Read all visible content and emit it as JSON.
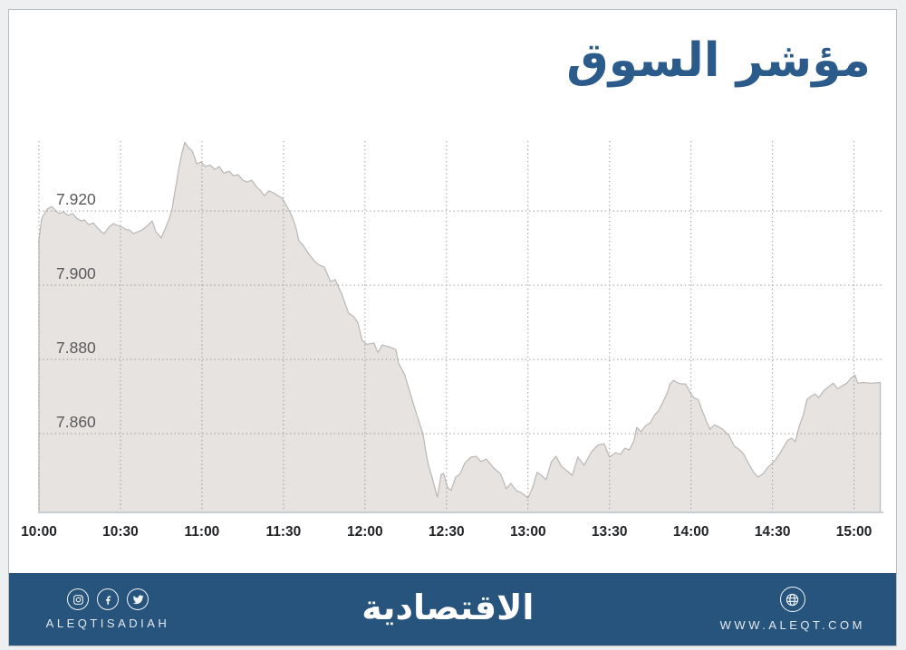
{
  "title": "مؤشر السوق",
  "chart_data": {
    "type": "area",
    "title": "مؤشر السوق",
    "x_axis": {
      "ticks": [
        "10:00",
        "10:30",
        "11:00",
        "11:30",
        "12:00",
        "12:30",
        "13:00",
        "13:30",
        "14:00",
        "14:30",
        "15:00"
      ],
      "tick_values": [
        10,
        10.5,
        11,
        11.5,
        12,
        12.5,
        13,
        13.5,
        14,
        14.5,
        15
      ],
      "range": [
        10,
        15.18
      ]
    },
    "y_axis": {
      "ticks": [
        "7.920",
        "7.900",
        "7.880",
        "7.860"
      ],
      "tick_values": [
        7920,
        7900,
        7880,
        7860
      ],
      "range": [
        7838.8,
        7938.8
      ]
    },
    "grid": "dotted",
    "legend": "none",
    "points": [
      [
        10.0,
        7912.4
      ],
      [
        10.017,
        7918.0
      ],
      [
        10.05,
        7920.5
      ],
      [
        10.078,
        7921.2
      ],
      [
        10.094,
        7920.5
      ],
      [
        10.122,
        7919.3
      ],
      [
        10.15,
        7919.8
      ],
      [
        10.178,
        7918.8
      ],
      [
        10.206,
        7919.3
      ],
      [
        10.233,
        7918.0
      ],
      [
        10.261,
        7917.3
      ],
      [
        10.278,
        7917.6
      ],
      [
        10.306,
        7916.3
      ],
      [
        10.333,
        7916.8
      ],
      [
        10.356,
        7915.6
      ],
      [
        10.383,
        7914.4
      ],
      [
        10.4,
        7913.9
      ],
      [
        10.428,
        7915.6
      ],
      [
        10.456,
        7916.6
      ],
      [
        10.483,
        7916.1
      ],
      [
        10.511,
        7915.6
      ],
      [
        10.539,
        7914.9
      ],
      [
        10.556,
        7914.9
      ],
      [
        10.578,
        7913.9
      ],
      [
        10.606,
        7914.4
      ],
      [
        10.633,
        7914.9
      ],
      [
        10.667,
        7916.1
      ],
      [
        10.694,
        7917.3
      ],
      [
        10.717,
        7914.4
      ],
      [
        10.733,
        7913.7
      ],
      [
        10.75,
        7912.7
      ],
      [
        10.778,
        7915.6
      ],
      [
        10.8,
        7918.0
      ],
      [
        10.817,
        7920.5
      ],
      [
        10.828,
        7923.7
      ],
      [
        10.844,
        7927.8
      ],
      [
        10.856,
        7931.0
      ],
      [
        10.872,
        7934.6
      ],
      [
        10.894,
        7938.5
      ],
      [
        10.917,
        7937.1
      ],
      [
        10.939,
        7936.3
      ],
      [
        10.956,
        7934.4
      ],
      [
        10.967,
        7932.7
      ],
      [
        10.994,
        7933.2
      ],
      [
        11.022,
        7932.0
      ],
      [
        11.05,
        7932.4
      ],
      [
        11.078,
        7931.2
      ],
      [
        11.106,
        7932.0
      ],
      [
        11.133,
        7930.2
      ],
      [
        11.167,
        7930.7
      ],
      [
        11.194,
        7929.5
      ],
      [
        11.222,
        7929.8
      ],
      [
        11.25,
        7928.3
      ],
      [
        11.278,
        7927.8
      ],
      [
        11.306,
        7928.3
      ],
      [
        11.333,
        7926.6
      ],
      [
        11.361,
        7925.4
      ],
      [
        11.383,
        7924.1
      ],
      [
        11.411,
        7925.4
      ],
      [
        11.439,
        7924.9
      ],
      [
        11.467,
        7924.1
      ],
      [
        11.494,
        7923.4
      ],
      [
        11.522,
        7921.2
      ],
      [
        11.55,
        7918.8
      ],
      [
        11.567,
        7916.8
      ],
      [
        11.583,
        7914.4
      ],
      [
        11.594,
        7912.0
      ],
      [
        11.622,
        7910.7
      ],
      [
        11.639,
        7909.5
      ],
      [
        11.667,
        7907.8
      ],
      [
        11.694,
        7906.3
      ],
      [
        11.722,
        7905.4
      ],
      [
        11.75,
        7904.9
      ],
      [
        11.789,
        7901.0
      ],
      [
        11.817,
        7901.5
      ],
      [
        11.856,
        7897.8
      ],
      [
        11.9,
        7892.4
      ],
      [
        11.928,
        7891.7
      ],
      [
        11.956,
        7890.0
      ],
      [
        11.983,
        7885.1
      ],
      [
        12.011,
        7884.1
      ],
      [
        12.056,
        7884.4
      ],
      [
        12.078,
        7881.9
      ],
      [
        12.106,
        7883.9
      ],
      [
        12.15,
        7883.4
      ],
      [
        12.189,
        7882.7
      ],
      [
        12.206,
        7879.0
      ],
      [
        12.244,
        7875.9
      ],
      [
        12.272,
        7871.7
      ],
      [
        12.3,
        7867.6
      ],
      [
        12.328,
        7863.7
      ],
      [
        12.356,
        7860.0
      ],
      [
        12.372,
        7855.4
      ],
      [
        12.389,
        7851.7
      ],
      [
        12.417,
        7847.3
      ],
      [
        12.444,
        7842.9
      ],
      [
        12.467,
        7849.0
      ],
      [
        12.483,
        7849.3
      ],
      [
        12.506,
        7845.6
      ],
      [
        12.528,
        7844.7
      ],
      [
        12.556,
        7848.3
      ],
      [
        12.583,
        7849.1
      ],
      [
        12.611,
        7852.0
      ],
      [
        12.65,
        7853.7
      ],
      [
        12.683,
        7853.9
      ],
      [
        12.711,
        7852.5
      ],
      [
        12.744,
        7853.2
      ],
      [
        12.789,
        7850.8
      ],
      [
        12.833,
        7849.1
      ],
      [
        12.867,
        7845.2
      ],
      [
        12.894,
        7846.6
      ],
      [
        12.928,
        7844.7
      ],
      [
        12.956,
        7844.2
      ],
      [
        13.0,
        7842.7
      ],
      [
        13.028,
        7845.4
      ],
      [
        13.056,
        7849.6
      ],
      [
        13.083,
        7848.8
      ],
      [
        13.111,
        7847.6
      ],
      [
        13.144,
        7852.5
      ],
      [
        13.172,
        7853.9
      ],
      [
        13.206,
        7851.2
      ],
      [
        13.239,
        7850.0
      ],
      [
        13.272,
        7848.8
      ],
      [
        13.306,
        7853.7
      ],
      [
        13.344,
        7851.5
      ],
      [
        13.389,
        7855.1
      ],
      [
        13.428,
        7856.9
      ],
      [
        13.467,
        7857.3
      ],
      [
        13.5,
        7853.7
      ],
      [
        13.539,
        7854.9
      ],
      [
        13.567,
        7854.4
      ],
      [
        13.594,
        7856.1
      ],
      [
        13.622,
        7855.6
      ],
      [
        13.65,
        7858.1
      ],
      [
        13.667,
        7861.7
      ],
      [
        13.694,
        7860.5
      ],
      [
        13.722,
        7862.2
      ],
      [
        13.75,
        7862.9
      ],
      [
        13.778,
        7865.1
      ],
      [
        13.8,
        7866.1
      ],
      [
        13.828,
        7868.5
      ],
      [
        13.856,
        7871.2
      ],
      [
        13.872,
        7873.4
      ],
      [
        13.894,
        7874.4
      ],
      [
        13.922,
        7873.6
      ],
      [
        13.944,
        7873.4
      ],
      [
        13.967,
        7873.4
      ],
      [
        13.994,
        7871.2
      ],
      [
        14.017,
        7869.7
      ],
      [
        14.044,
        7869.2
      ],
      [
        14.067,
        7866.5
      ],
      [
        14.094,
        7863.4
      ],
      [
        14.117,
        7861.2
      ],
      [
        14.144,
        7862.4
      ],
      [
        14.167,
        7861.9
      ],
      [
        14.194,
        7861.2
      ],
      [
        14.233,
        7859.5
      ],
      [
        14.267,
        7856.6
      ],
      [
        14.294,
        7855.8
      ],
      [
        14.322,
        7854.6
      ],
      [
        14.35,
        7852.2
      ],
      [
        14.383,
        7849.7
      ],
      [
        14.411,
        7848.3
      ],
      [
        14.444,
        7849.3
      ],
      [
        14.467,
        7850.7
      ],
      [
        14.494,
        7851.9
      ],
      [
        14.517,
        7852.9
      ],
      [
        14.544,
        7854.6
      ],
      [
        14.567,
        7856.3
      ],
      [
        14.594,
        7858.3
      ],
      [
        14.617,
        7858.8
      ],
      [
        14.639,
        7857.8
      ],
      [
        14.667,
        7862.4
      ],
      [
        14.689,
        7865.1
      ],
      [
        14.711,
        7869.2
      ],
      [
        14.733,
        7870.0
      ],
      [
        14.761,
        7870.7
      ],
      [
        14.783,
        7869.7
      ],
      [
        14.817,
        7871.7
      ],
      [
        14.844,
        7872.6
      ],
      [
        14.872,
        7873.6
      ],
      [
        14.9,
        7872.1
      ],
      [
        14.928,
        7872.9
      ],
      [
        14.956,
        7873.6
      ],
      [
        14.978,
        7874.8
      ],
      [
        15.006,
        7875.8
      ],
      [
        15.022,
        7873.6
      ],
      [
        15.056,
        7873.8
      ],
      [
        15.106,
        7873.6
      ],
      [
        15.161,
        7873.8
      ]
    ]
  },
  "footer": {
    "brand_latin": "ALEQTISADIAH",
    "brand_arabic": "الاقتصادية",
    "website": "WWW.ALEQT.COM",
    "icons": [
      "instagram-icon",
      "facebook-icon",
      "twitter-icon",
      "globe-icon"
    ]
  },
  "colors": {
    "title": "#2b5b8a",
    "footer_bg": "#27547d",
    "frame_bg": "#edeff1",
    "frame_border": "#b9bdc2",
    "area_fill": "#e6e3e1",
    "area_stroke": "#bab7b5",
    "grid": "#9b9b9b",
    "y_label": "#58585b",
    "x_label": "#222326",
    "baseline": "#c8ccd3"
  }
}
